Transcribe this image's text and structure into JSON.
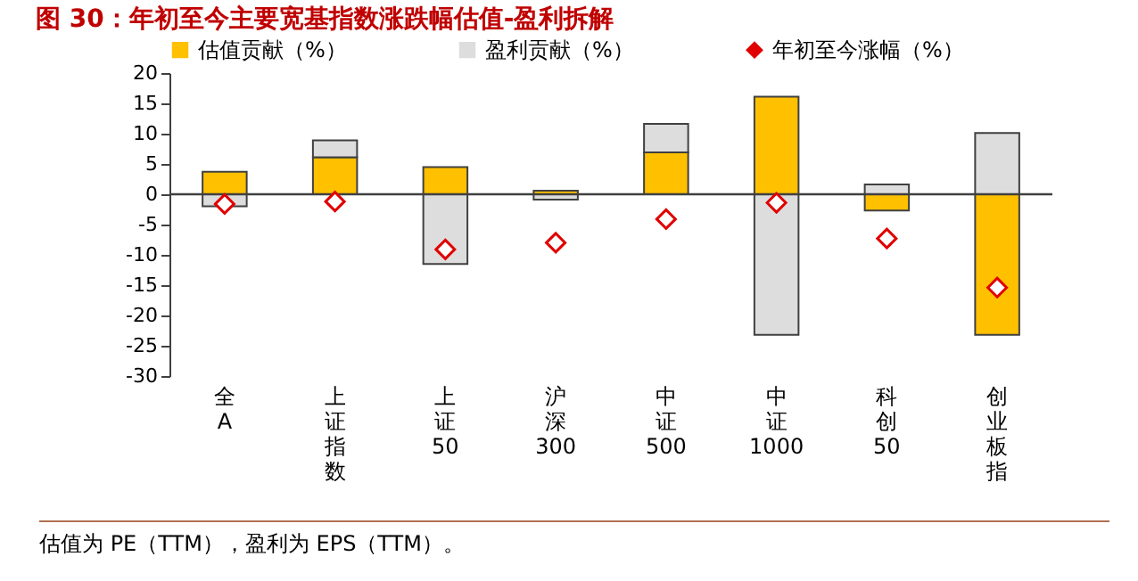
{
  "chart_data": {
    "type": "bar",
    "title": "图 30：年初至今主要宽基指数涨跌幅估值-盈利拆解",
    "annotations": [
      "估值为 PE（TTM），盈利为 EPS（TTM）。"
    ],
    "categories": [
      "全A",
      "上证指数",
      "上证50",
      "沪深300",
      "中证500",
      "中证1000",
      "科创50",
      "创业板指"
    ],
    "stacked": true,
    "legend": "top",
    "marker": "diamond",
    "series": [
      {
        "name": "估值贡献（%）",
        "type": "bar",
        "color": "#ffc000",
        "values": [
          3.7,
          6.1,
          4.5,
          0.6,
          6.9,
          16.1,
          -2.7,
          -23.2
        ]
      },
      {
        "name": "盈利贡献（%）",
        "type": "bar",
        "color": "#dddddd",
        "values": [
          -2.0,
          2.8,
          -11.5,
          -0.9,
          4.7,
          -23.2,
          1.6,
          10.1
        ]
      },
      {
        "name": "年初至今涨幅（%）",
        "type": "scatter",
        "color": "#e00000",
        "values": [
          -1.6,
          -1.2,
          -9.1,
          -8.0,
          -4.1,
          -1.4,
          -7.3,
          -15.4
        ]
      }
    ],
    "ylim": [
      -30,
      20
    ],
    "yticks": [
      -30,
      -25,
      -20,
      -15,
      -10,
      -5,
      0,
      5,
      10,
      15,
      20
    ],
    "ref_lines": [
      {
        "axis": "y",
        "value": 0,
        "color": "#404040"
      }
    ]
  }
}
